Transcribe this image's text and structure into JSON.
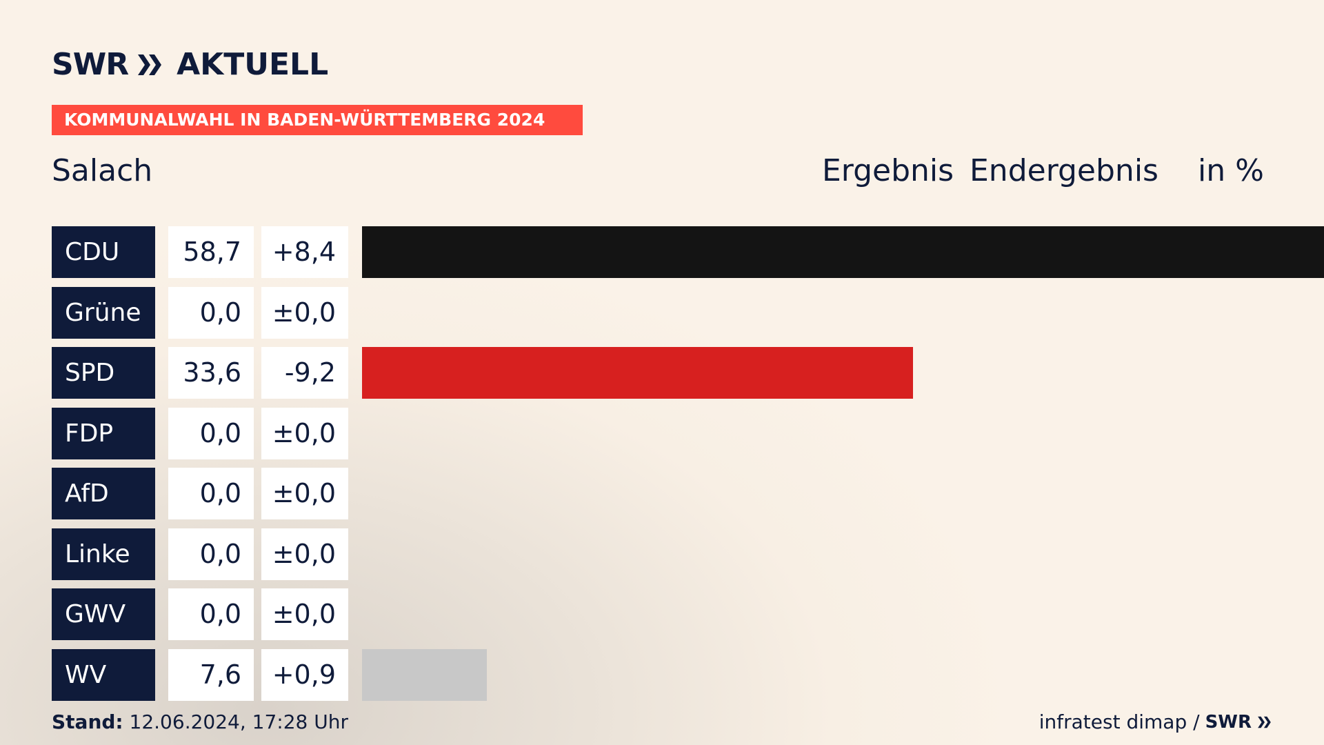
{
  "brand": {
    "swr": "SWR",
    "aktuell": "AKTUELL"
  },
  "banner": "KOMMUNALWAHL IN BADEN-WÜRTTEMBERG 2024",
  "place": "Salach",
  "headers": {
    "ergebnis": "Ergebnis",
    "endergebnis": "Endergebnis",
    "unit": "in %"
  },
  "chart_data": {
    "type": "bar",
    "orientation": "horizontal",
    "xlim": [
      0,
      58.7
    ],
    "categories": [
      "CDU",
      "Grüne",
      "SPD",
      "FDP",
      "AfD",
      "Linke",
      "GWV",
      "WV"
    ],
    "values": [
      58.7,
      0.0,
      33.6,
      0.0,
      0.0,
      0.0,
      0.0,
      7.6
    ],
    "values_text": [
      "58,7",
      "0,0",
      "33,6",
      "0,0",
      "0,0",
      "0,0",
      "0,0",
      "7,6"
    ],
    "diff_text": [
      "+8,4",
      "±0,0",
      "-9,2",
      "±0,0",
      "±0,0",
      "±0,0",
      "±0,0",
      "+0,9"
    ],
    "colors": [
      "#141414",
      "#46962b",
      "#d7201f",
      "#ffd600",
      "#0a9fd8",
      "#be3075",
      "#8a6d3b",
      "#c8c8c8"
    ]
  },
  "footer": {
    "stand_label": "Stand:",
    "stand_value": "12.06.2024, 17:28 Uhr",
    "source": "infratest dimap /",
    "source_brand": "SWR"
  }
}
